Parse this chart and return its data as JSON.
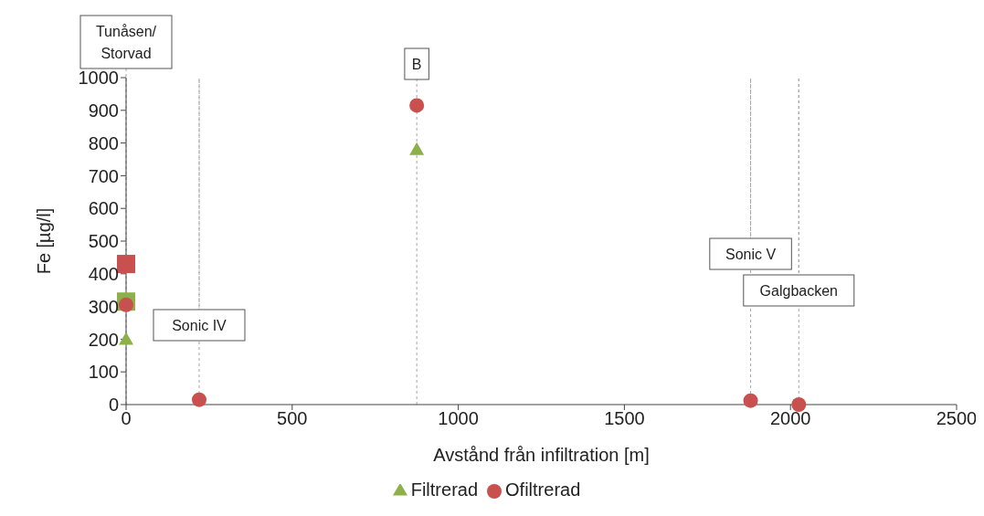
{
  "chart_data": {
    "type": "scatter",
    "xlabel": "Avstånd från infiltration [m]",
    "ylabel": "Fe [µg/l]",
    "xlim": [
      0,
      2500
    ],
    "xticks": [
      0,
      500,
      1000,
      1500,
      2000,
      2500
    ],
    "ylim": [
      0,
      1000
    ],
    "yticks": [
      0,
      100,
      200,
      300,
      400,
      500,
      600,
      700,
      800,
      900,
      1000
    ],
    "grid": false,
    "legend": "bottom",
    "series": [
      {
        "color": "#8db04b",
        "marker": "square",
        "x": [
          0
        ],
        "values": [
          315
        ]
      },
      {
        "color": "#c8504e",
        "marker": "square",
        "x": [
          0
        ],
        "values": [
          430
        ]
      },
      {
        "name": "Filtrerad",
        "color": "#8db04b",
        "marker": "triangle",
        "x": [
          0,
          875
        ],
        "values": [
          200,
          780
        ]
      },
      {
        "name": "Ofiltrerad",
        "color": "#c8504e",
        "marker": "circle",
        "x": [
          0,
          220,
          875,
          1880,
          2025
        ],
        "values": [
          305,
          15,
          915,
          12,
          0
        ]
      }
    ],
    "ref_lines": [
      {
        "axis": "x",
        "value": 0,
        "label": "Tunåsen/Storvad",
        "color": "#a6a6a6",
        "line_style": "dotted"
      },
      {
        "axis": "x",
        "value": 220,
        "label": "Sonic IV",
        "color": "#a6a6a6",
        "line_style": "dotted"
      },
      {
        "axis": "x",
        "value": 875,
        "label": "B",
        "color": "#a6a6a6",
        "line_style": "dotted"
      },
      {
        "axis": "x",
        "value": 1880,
        "label": "Sonic V",
        "color": "#a6a6a6",
        "line_style": "dotted"
      },
      {
        "axis": "x",
        "value": 2025,
        "label": "Galgbacken",
        "color": "#a6a6a6",
        "line_style": "dotted"
      }
    ]
  }
}
